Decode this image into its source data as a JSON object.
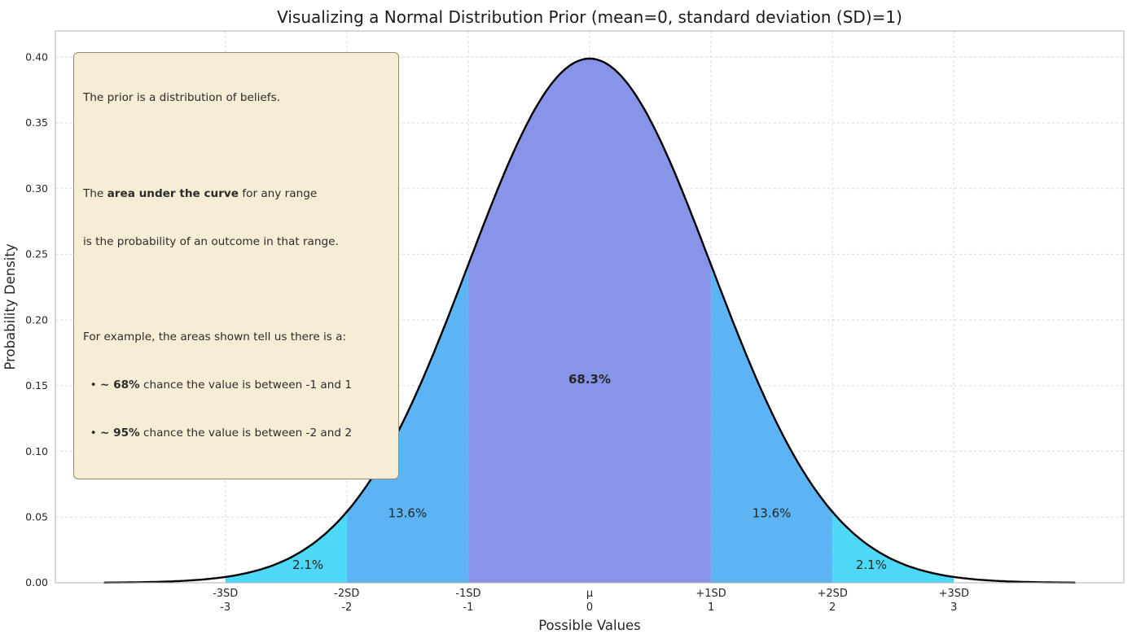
{
  "chart_data": {
    "type": "area",
    "title": "Visualizing a Normal Distribution Prior (mean=0, standard deviation (SD)=1)",
    "xlabel": "Possible Values",
    "ylabel": "Probability Density",
    "xlim": [
      -4.4,
      4.4
    ],
    "ylim": [
      0,
      0.42
    ],
    "grid": true,
    "curve": {
      "distribution": "normal",
      "mean": 0,
      "sd": 1,
      "x_range": [
        -4,
        4
      ],
      "color": "#000000"
    },
    "y_ticks": [
      0,
      0.05,
      0.1,
      0.15,
      0.2,
      0.25,
      0.3,
      0.35,
      0.4
    ],
    "x_ticks": [
      {
        "v": -3,
        "line1": "-3SD",
        "line2": "-3"
      },
      {
        "v": -2,
        "line1": "-2SD",
        "line2": "-2"
      },
      {
        "v": -1,
        "line1": "-1SD",
        "line2": "-1"
      },
      {
        "v": 0,
        "line1": "μ",
        "line2": "0"
      },
      {
        "v": 1,
        "line1": "+1SD",
        "line2": "1"
      },
      {
        "v": 2,
        "line1": "+2SD",
        "line2": "2"
      },
      {
        "v": 3,
        "line1": "+3SD",
        "line2": "3"
      }
    ],
    "regions": [
      {
        "from": -1,
        "to": 1,
        "color": "#8794e8",
        "label": "68.3%",
        "label_x": 0,
        "label_y": 0.155,
        "label_color": "#ffffff",
        "label_bold": true
      },
      {
        "from": -2,
        "to": -1,
        "color": "#5cb4f5",
        "label": "13.6%",
        "label_x": -1.5,
        "label_y": 0.053,
        "label_color": "#1a1a1a",
        "label_bold": false
      },
      {
        "from": 1,
        "to": 2,
        "color": "#5cb4f5",
        "label": "13.6%",
        "label_x": 1.5,
        "label_y": 0.053,
        "label_color": "#1a1a1a",
        "label_bold": false
      },
      {
        "from": -3,
        "to": -2,
        "color": "#4ed8f8",
        "label": "2.1%",
        "label_x": -2.32,
        "label_y": 0.0135,
        "label_color": "#1a1a1a",
        "label_bold": false
      },
      {
        "from": 2,
        "to": 3,
        "color": "#4ed8f8",
        "label": "2.1%",
        "label_x": 2.32,
        "label_y": 0.0135,
        "label_color": "#1a1a1a",
        "label_bold": false
      }
    ]
  },
  "annotation": {
    "p1": "The prior is a distribution of beliefs.",
    "p2_pre": "The ",
    "p2_bold": "area under the curve",
    "p2_post": " for any range",
    "p2_line2": "is the probability of an outcome in that range.",
    "p3_intro": "For example, the areas shown tell us there is a:",
    "b1_pre": "  • ",
    "b1_bold": "~ 68%",
    "b1_text": " chance the value is between -1 and 1",
    "b2_pre": "  • ",
    "b2_bold": "~ 95%",
    "b2_text": " chance the value is between -2 and 2"
  }
}
